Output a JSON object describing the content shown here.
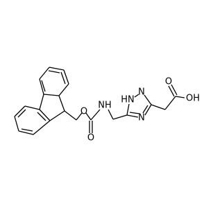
{
  "atoms": [
    {
      "label": "O"
    },
    {
      "label": "NH"
    },
    {
      "label": "O"
    },
    {
      "label": "HN"
    },
    {
      "label": "N"
    },
    {
      "label": "N"
    },
    {
      "label": "O"
    },
    {
      "label": "OH"
    }
  ]
}
